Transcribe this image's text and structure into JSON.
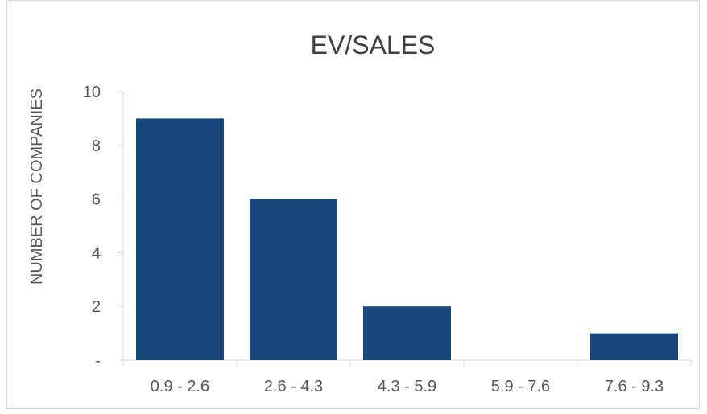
{
  "chart_data": {
    "type": "bar",
    "title": "EV/SALES",
    "xlabel": "",
    "ylabel": "NUMBER OF COMPANIES",
    "categories": [
      "0.9 - 2.6",
      "2.6 - 4.3",
      "4.3 - 5.9",
      "5.9 - 7.6",
      "7.6 - 9.3"
    ],
    "values": [
      9,
      6,
      2,
      0,
      1
    ],
    "ylim": [
      0,
      10
    ],
    "yticks": [
      0,
      2,
      4,
      6,
      8,
      10
    ],
    "ytick_labels": [
      "-",
      "2",
      "4",
      "6",
      "8",
      "10"
    ],
    "grid": false,
    "legend": "none",
    "colors": {
      "bar": "#17477d",
      "axis": "#d9d9d9",
      "text": "#595959",
      "title": "#404040",
      "border": "#d9d9d9"
    }
  }
}
